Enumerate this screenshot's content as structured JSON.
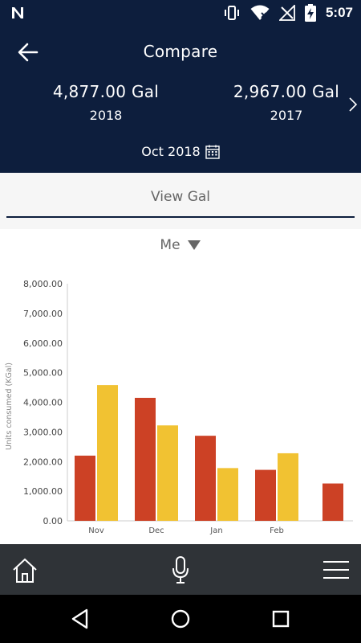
{
  "status_bar": {
    "time": "5:07",
    "left_icon": "n-notification-icon",
    "icons": [
      "vibrate-icon",
      "wifi-icon",
      "signal-icon",
      "battery-charging-icon"
    ]
  },
  "header": {
    "title": "Compare",
    "back_icon": "arrow-left-icon",
    "stat_current": {
      "value": "4,877.00 Gal",
      "year": "2018"
    },
    "stat_previous": {
      "value": "2,967.00 Gal",
      "year": "2017"
    },
    "next_icon": "chevron-right-icon",
    "date": "Oct 2018",
    "calendar_icon": "calendar-icon"
  },
  "view_tab": {
    "label": "View Gal"
  },
  "filter": {
    "label": "Me",
    "icon": "triangle-down-icon"
  },
  "colors": {
    "header_bg": "#0d1e3d",
    "series_2018": "#cc4125",
    "series_2017": "#f1c232",
    "bottom_nav_bg": "#2f3337"
  },
  "chart_data": {
    "type": "bar",
    "ylabel": "Units consumed (KGal)",
    "ylim": [
      0,
      8000
    ],
    "yticks": [
      "0.00",
      "1,000.00",
      "2,000.00",
      "3,000.00",
      "4,000.00",
      "5,000.00",
      "6,000.00",
      "7,000.00",
      "8,000.00"
    ],
    "ytick_values": [
      0,
      1000,
      2000,
      3000,
      4000,
      5000,
      6000,
      7000,
      8000
    ],
    "categories": [
      "Nov",
      "Dec",
      "Jan",
      "Feb",
      ""
    ],
    "series": [
      {
        "values": [
          2200,
          4150,
          2870,
          1720,
          1260
        ],
        "color": "#cc4125"
      },
      {
        "values": [
          4580,
          3220,
          1780,
          2280,
          null
        ],
        "color": "#f1c232"
      }
    ],
    "grid": false,
    "legend": "none"
  },
  "bottom_nav": {
    "icons": [
      "home-icon",
      "microphone-icon",
      "menu-icon"
    ]
  },
  "system_nav": {
    "icons": [
      "nav-back-icon",
      "nav-home-icon",
      "nav-recents-icon"
    ]
  }
}
